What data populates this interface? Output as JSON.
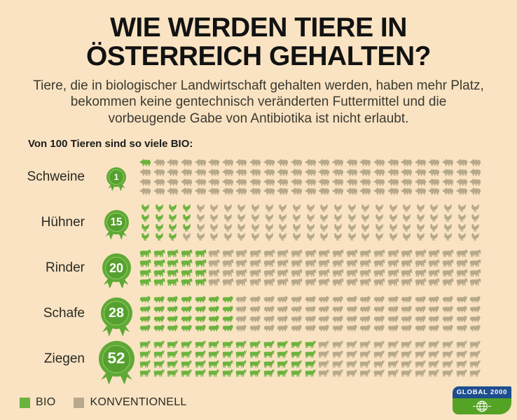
{
  "header": {
    "title": "WIE WERDEN TIERE IN\nÖSTERREICH GEHALTEN?",
    "subtitle": "Tiere, die in biologischer Landwirtschaft gehalten werden, haben mehr Platz,\nbekommen keine gentechnisch veränderten Futtermittel und die\nvorbeugende Gabe von Antibiotika ist nicht erlaubt."
  },
  "intro_label": "Von 100 Tieren sind so viele BIO:",
  "chart_data": {
    "type": "pictogram",
    "title": "WIE WERDEN TIERE IN ÖSTERREICH GEHALTEN?",
    "note": "Von 100 Tieren sind so viele BIO:",
    "total_per_category": 100,
    "categories": [
      "Schweine",
      "Hühner",
      "Rinder",
      "Schafe",
      "Ziegen"
    ],
    "series": [
      {
        "name": "BIO",
        "values": [
          1,
          15,
          20,
          28,
          52
        ]
      },
      {
        "name": "KONVENTIONELL",
        "values": [
          99,
          85,
          80,
          72,
          48
        ]
      }
    ],
    "icons": [
      "pig",
      "chicken",
      "cow",
      "sheep",
      "goat"
    ],
    "grid": {
      "rows": 4,
      "cols": 25,
      "fill": "column-major"
    },
    "legend_position": "bottom-left",
    "colors": {
      "bio": "#6cb33e",
      "konventionell": "#b7a98c",
      "background": "#f9e3c2",
      "badge": "#5fa936"
    }
  },
  "legend": {
    "bio_label": "BIO",
    "konventionell_label": "KONVENTIONELL"
  },
  "logo": {
    "text": "GLOBAL 2000"
  }
}
